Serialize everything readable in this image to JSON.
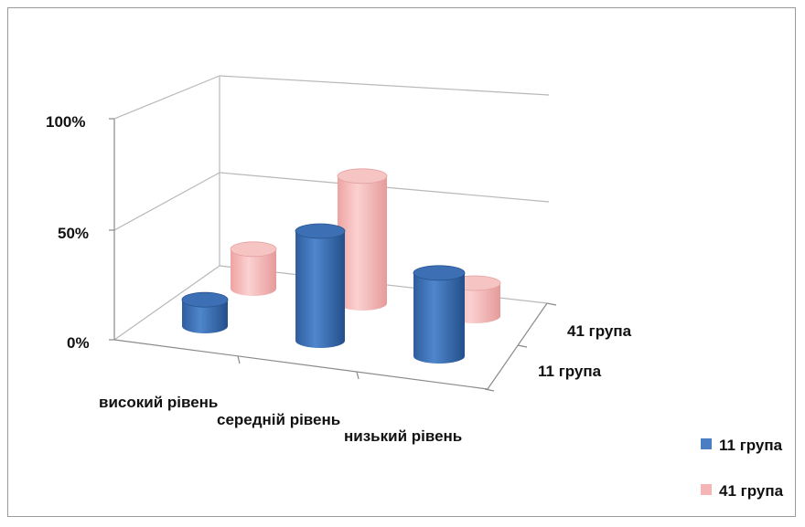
{
  "chart_data": {
    "type": "bar",
    "subtype": "3d-cylinder",
    "categories": [
      "високий рівень",
      "середній рівень",
      "низький рівень"
    ],
    "series": [
      {
        "name": "11 група",
        "color": "#4a7ec2",
        "values": [
          12,
          50,
          38
        ]
      },
      {
        "name": "41 група",
        "color": "#f4b5b5",
        "values": [
          18,
          58,
          15
        ]
      }
    ],
    "depth_labels": [
      "41 група",
      "11 група"
    ],
    "ytick_labels": [
      "0%",
      "50%",
      "100%"
    ],
    "ylim": [
      0,
      100
    ],
    "grid": true,
    "legend": "right"
  }
}
